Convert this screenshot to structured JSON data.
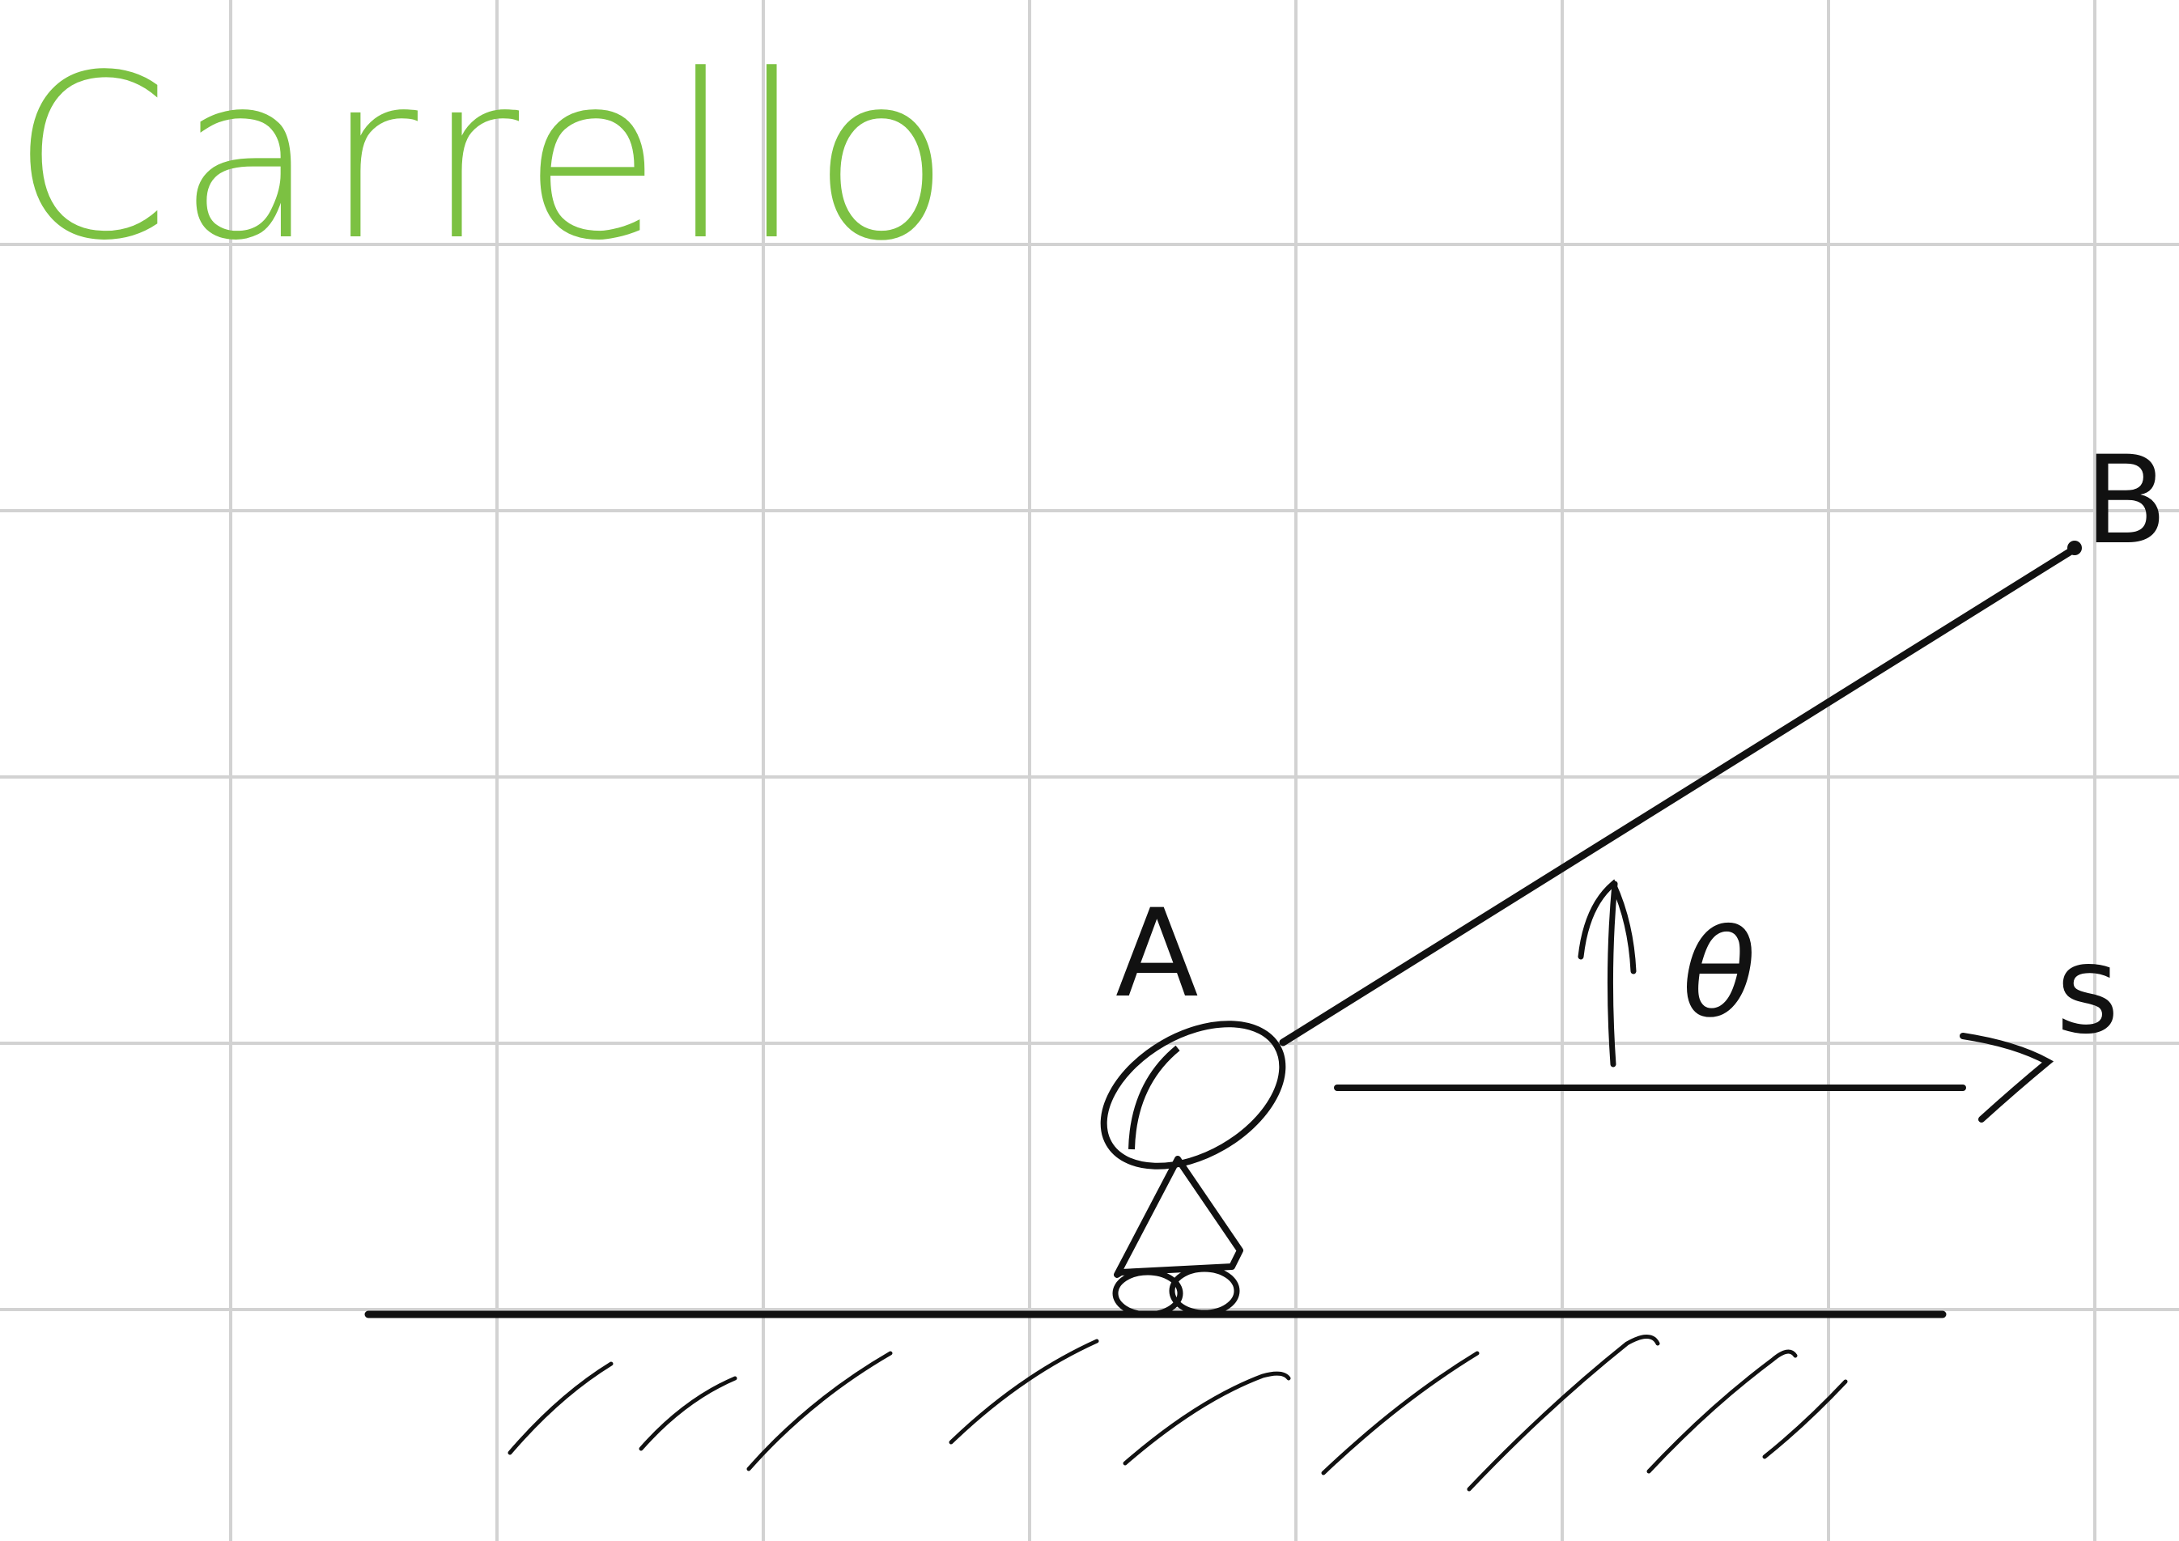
{
  "title": "Carrello",
  "points": {
    "a": "A",
    "b": "B"
  },
  "labels": {
    "angle": "θ",
    "axis": "s"
  },
  "colors": {
    "background": "#ffffff",
    "grid": "#d2d2d2",
    "ink": "#111111",
    "title": "#7cc142"
  }
}
